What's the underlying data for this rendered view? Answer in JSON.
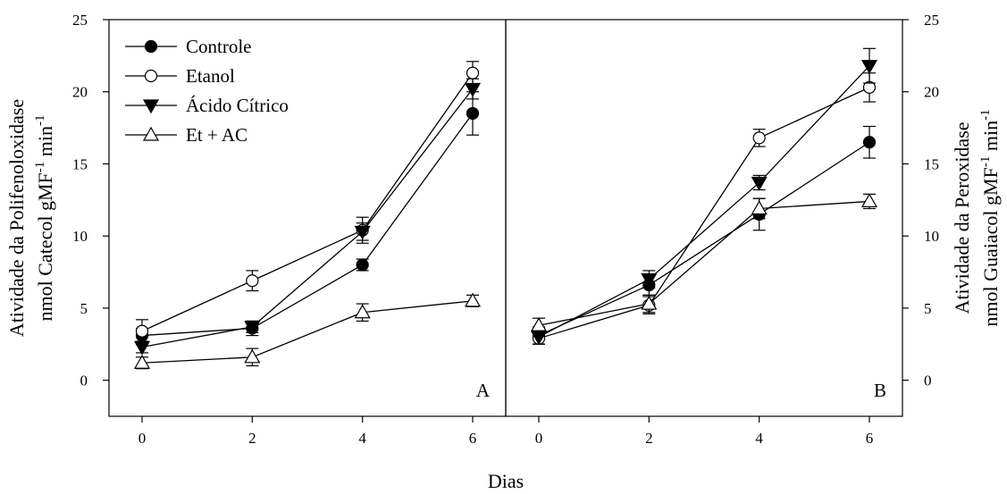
{
  "chart_data": [
    {
      "panel": "A",
      "type": "line",
      "x": [
        0,
        2,
        4,
        6
      ],
      "xticks": [
        "0",
        "2",
        "4",
        "6"
      ],
      "yticks": [
        "0",
        "5",
        "10",
        "15",
        "20",
        "25"
      ],
      "ylim": [
        -2.5,
        25
      ],
      "xlim": [
        -0.6,
        6.6
      ],
      "ylabel_line1": "Atividade da Polifenoloxidase",
      "ylabel_line2_prefix": "nmol Catecol gMF",
      "ylabel_line2_mid": " min",
      "ylabel_sup": "-1",
      "legend_position": "top-left",
      "series": [
        {
          "name": "Controle",
          "marker": "circle-filled",
          "values": [
            3.1,
            3.6,
            8.0,
            18.5
          ],
          "errors": [
            0.5,
            0.5,
            0.4,
            1.5
          ]
        },
        {
          "name": "Etanol",
          "marker": "circle-open",
          "values": [
            3.4,
            6.9,
            10.4,
            21.3
          ],
          "errors": [
            0.8,
            0.7,
            0.9,
            0.8
          ]
        },
        {
          "name": "Ácido Cítrico",
          "marker": "triangle-down-filled",
          "values": [
            2.3,
            3.7,
            10.3,
            20.2
          ],
          "errors": [
            0.4,
            0.4,
            0.6,
            0.7
          ]
        },
        {
          "name": "Et + AC",
          "marker": "triangle-up-open",
          "values": [
            1.2,
            1.6,
            4.7,
            5.5
          ],
          "errors": [
            0.4,
            0.6,
            0.6,
            0.4
          ]
        }
      ]
    },
    {
      "panel": "B",
      "type": "line",
      "x": [
        0,
        2,
        4,
        6
      ],
      "xticks": [
        "0",
        "2",
        "4",
        "6"
      ],
      "yticks": [
        "0",
        "5",
        "10",
        "15",
        "20",
        "25"
      ],
      "ylim": [
        -2.5,
        25
      ],
      "xlim": [
        -0.6,
        6.6
      ],
      "ylabel_line1": "Atividade da Peroxidase",
      "ylabel_line2_prefix": "nmol Guaiacol gMF",
      "ylabel_line2_mid": " min",
      "ylabel_sup": "-1",
      "series": [
        {
          "name": "Controle",
          "marker": "circle-filled",
          "values": [
            3.1,
            6.6,
            11.5,
            16.5
          ],
          "errors": [
            0.6,
            0.7,
            1.1,
            1.1
          ]
        },
        {
          "name": "Etanol",
          "marker": "circle-open",
          "values": [
            2.9,
            5.2,
            16.8,
            20.3
          ],
          "errors": [
            0.4,
            0.6,
            0.6,
            1.0
          ]
        },
        {
          "name": "Ácido Cítrico",
          "marker": "triangle-down-filled",
          "values": [
            3.0,
            7.0,
            13.7,
            21.8
          ],
          "errors": [
            0.5,
            0.6,
            0.5,
            1.2
          ]
        },
        {
          "name": "Et + AC",
          "marker": "triangle-up-open",
          "values": [
            3.8,
            5.3,
            11.9,
            12.4
          ],
          "errors": [
            0.5,
            0.6,
            0.7,
            0.5
          ]
        }
      ]
    }
  ],
  "xlabel": "Dias",
  "panel_labels": [
    "A",
    "B"
  ]
}
